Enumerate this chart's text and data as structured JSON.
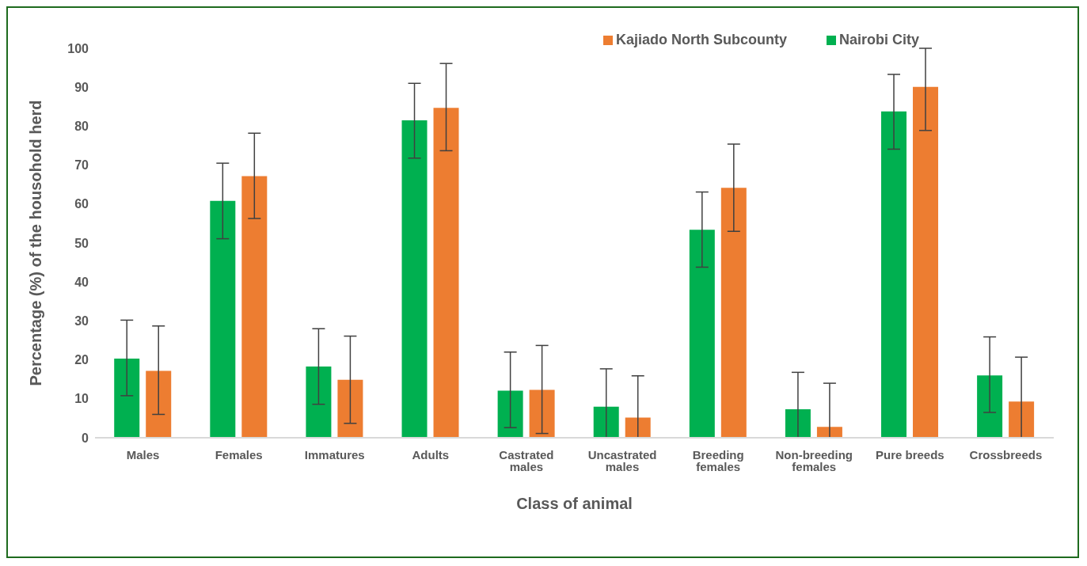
{
  "chart_data": {
    "type": "bar",
    "xlabel": "Class of animal",
    "ylabel": "Percentage (%) of the housohold herd",
    "categories": [
      "Males",
      "Females",
      "Immatures",
      "Adults",
      "Castrated males",
      "Uncastrated males",
      "Breeding females",
      "Non-breeding females",
      "Pure breeds",
      "Crossbreeds"
    ],
    "series": [
      {
        "name": "Nairobi City",
        "color": "#00b050",
        "values": [
          20.3,
          60.8,
          18.3,
          81.5,
          12.1,
          8.0,
          53.4,
          7.3,
          83.8,
          16.0
        ],
        "errors": [
          [
            10.8,
            30.2
          ],
          [
            51.1,
            70.5
          ],
          [
            8.6,
            28.0
          ],
          [
            71.8,
            91.0
          ],
          [
            2.6,
            22.0
          ],
          [
            0,
            17.7
          ],
          [
            43.8,
            63.1
          ],
          [
            0,
            16.8
          ],
          [
            74.1,
            93.3
          ],
          [
            6.5,
            25.9
          ]
        ]
      },
      {
        "name": "Kajiado North Subcounty",
        "color": "#ed7d31",
        "values": [
          17.2,
          67.2,
          14.9,
          84.7,
          12.3,
          5.2,
          64.2,
          2.8,
          90.1,
          9.3
        ],
        "errors": [
          [
            6.0,
            28.7
          ],
          [
            56.3,
            78.2
          ],
          [
            3.7,
            26.1
          ],
          [
            73.7,
            96.1
          ],
          [
            1.1,
            23.7
          ],
          [
            0,
            15.9
          ],
          [
            53.0,
            75.4
          ],
          [
            0,
            14.0
          ],
          [
            78.9,
            100
          ],
          [
            0,
            20.7
          ]
        ]
      }
    ],
    "ylim": [
      0,
      100
    ],
    "yticks": [
      0,
      10,
      20,
      30,
      40,
      50,
      60,
      70,
      80,
      90,
      100
    ],
    "grid": false,
    "legend": "top right"
  }
}
